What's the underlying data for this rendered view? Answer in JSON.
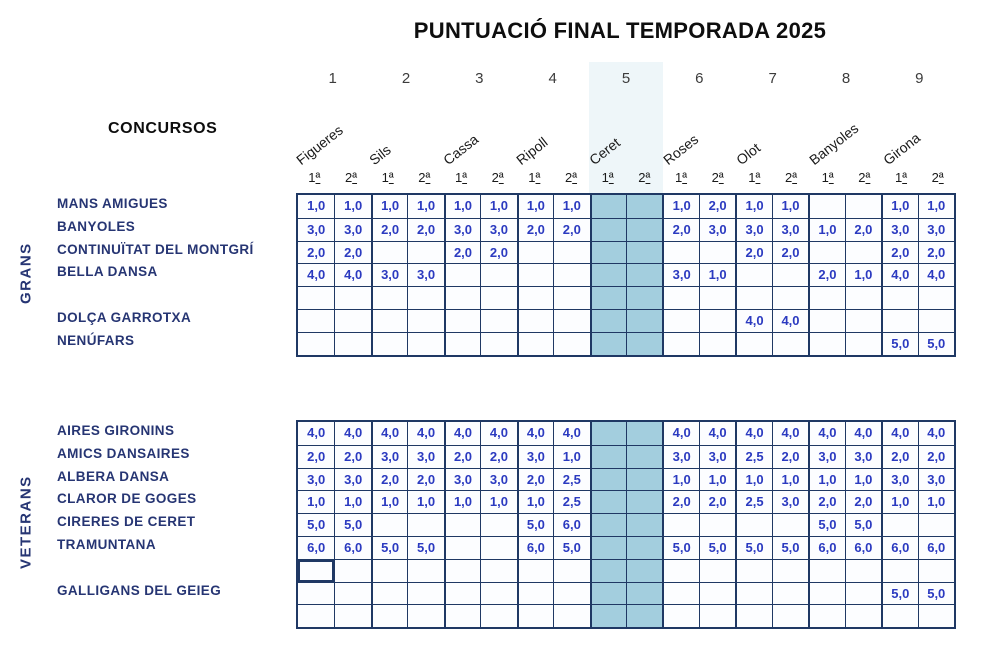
{
  "title": "PUNTUACIÓ FINAL TEMPORADA 2025",
  "concursos_label": "CONCURSOS",
  "column_numbers": [
    "1",
    "2",
    "3",
    "4",
    "5",
    "6",
    "7",
    "8",
    "9"
  ],
  "venues": [
    "Figueres",
    "Sils",
    "Cassa",
    "Ripoll",
    "Ceret",
    "Roses",
    "Olot",
    "Banyoles",
    "Girona"
  ],
  "subheader": {
    "first_num": "1",
    "second_num": "2",
    "ordinal": "ª"
  },
  "highlight": {
    "venue": "Ceret",
    "column_pair": 5
  },
  "colors": {
    "border": "#1f3864",
    "score_text": "#2b3ac0",
    "label_text": "#263573",
    "highlight_fill": "#a3cede"
  },
  "selected_cell": {
    "group": "VETERANS",
    "row": 7,
    "col": 1
  },
  "groups": [
    {
      "name": "GRANS",
      "rows": [
        {
          "team": "MANS AMIGUES",
          "scores": [
            "1,0",
            "1,0",
            "1,0",
            "1,0",
            "1,0",
            "1,0",
            "1,0",
            "1,0",
            "",
            "",
            "1,0",
            "2,0",
            "1,0",
            "1,0",
            "",
            "",
            "1,0",
            "1,0"
          ]
        },
        {
          "team": "BANYOLES",
          "scores": [
            "3,0",
            "3,0",
            "2,0",
            "2,0",
            "3,0",
            "3,0",
            "2,0",
            "2,0",
            "",
            "",
            "2,0",
            "3,0",
            "3,0",
            "3,0",
            "1,0",
            "2,0",
            "3,0",
            "3,0"
          ]
        },
        {
          "team": "CONTINUÏTAT DEL MONTGRÍ",
          "scores": [
            "2,0",
            "2,0",
            "",
            "",
            "2,0",
            "2,0",
            "",
            "",
            "",
            "",
            "",
            "",
            "2,0",
            "2,0",
            "",
            "",
            "2,0",
            "2,0"
          ]
        },
        {
          "team": "BELLA DANSA",
          "scores": [
            "4,0",
            "4,0",
            "3,0",
            "3,0",
            "",
            "",
            "",
            "",
            "",
            "",
            "3,0",
            "1,0",
            "",
            "",
            "2,0",
            "1,0",
            "4,0",
            "4,0"
          ]
        },
        {
          "team": "",
          "scores": []
        },
        {
          "team": "DOLÇA GARROTXA",
          "scores": [
            "",
            "",
            "",
            "",
            "",
            "",
            "",
            "",
            "",
            "",
            "",
            "",
            "4,0",
            "4,0",
            "",
            "",
            "",
            ""
          ]
        },
        {
          "team": "NENÚFARS",
          "scores": [
            "",
            "",
            "",
            "",
            "",
            "",
            "",
            "",
            "",
            "",
            "",
            "",
            "",
            "",
            "",
            "",
            "5,0",
            "5,0"
          ]
        }
      ]
    },
    {
      "name": "VETERANS",
      "rows": [
        {
          "team": "AIRES GIRONINS",
          "scores": [
            "4,0",
            "4,0",
            "4,0",
            "4,0",
            "4,0",
            "4,0",
            "4,0",
            "4,0",
            "",
            "",
            "4,0",
            "4,0",
            "4,0",
            "4,0",
            "4,0",
            "4,0",
            "4,0",
            "4,0"
          ]
        },
        {
          "team": "AMICS DANSAIRES",
          "scores": [
            "2,0",
            "2,0",
            "3,0",
            "3,0",
            "2,0",
            "2,0",
            "3,0",
            "1,0",
            "",
            "",
            "3,0",
            "3,0",
            "2,5",
            "2,0",
            "3,0",
            "3,0",
            "2,0",
            "2,0"
          ]
        },
        {
          "team": "ALBERA DANSA",
          "scores": [
            "3,0",
            "3,0",
            "2,0",
            "2,0",
            "3,0",
            "3,0",
            "2,0",
            "2,5",
            "",
            "",
            "1,0",
            "1,0",
            "1,0",
            "1,0",
            "1,0",
            "1,0",
            "3,0",
            "3,0"
          ]
        },
        {
          "team": "CLAROR DE GOGES",
          "scores": [
            "1,0",
            "1,0",
            "1,0",
            "1,0",
            "1,0",
            "1,0",
            "1,0",
            "2,5",
            "",
            "",
            "2,0",
            "2,0",
            "2,5",
            "3,0",
            "2,0",
            "2,0",
            "1,0",
            "1,0"
          ]
        },
        {
          "team": "CIRERES DE CERET",
          "scores": [
            "5,0",
            "5,0",
            "",
            "",
            "",
            "",
            "5,0",
            "6,0",
            "",
            "",
            "",
            "",
            "",
            "",
            "5,0",
            "5,0",
            "",
            ""
          ]
        },
        {
          "team": "TRAMUNTANA",
          "scores": [
            "6,0",
            "6,0",
            "5,0",
            "5,0",
            "",
            "",
            "6,0",
            "5,0",
            "",
            "",
            "5,0",
            "5,0",
            "5,0",
            "5,0",
            "6,0",
            "6,0",
            "6,0",
            "6,0"
          ]
        },
        {
          "team": "",
          "scores": []
        },
        {
          "team": "GALLIGANS DEL GEIEG",
          "scores": [
            "",
            "",
            "",
            "",
            "",
            "",
            "",
            "",
            "",
            "",
            "",
            "",
            "",
            "",
            "",
            "",
            "5,0",
            "5,0"
          ]
        },
        {
          "team": "",
          "scores": []
        }
      ]
    }
  ]
}
